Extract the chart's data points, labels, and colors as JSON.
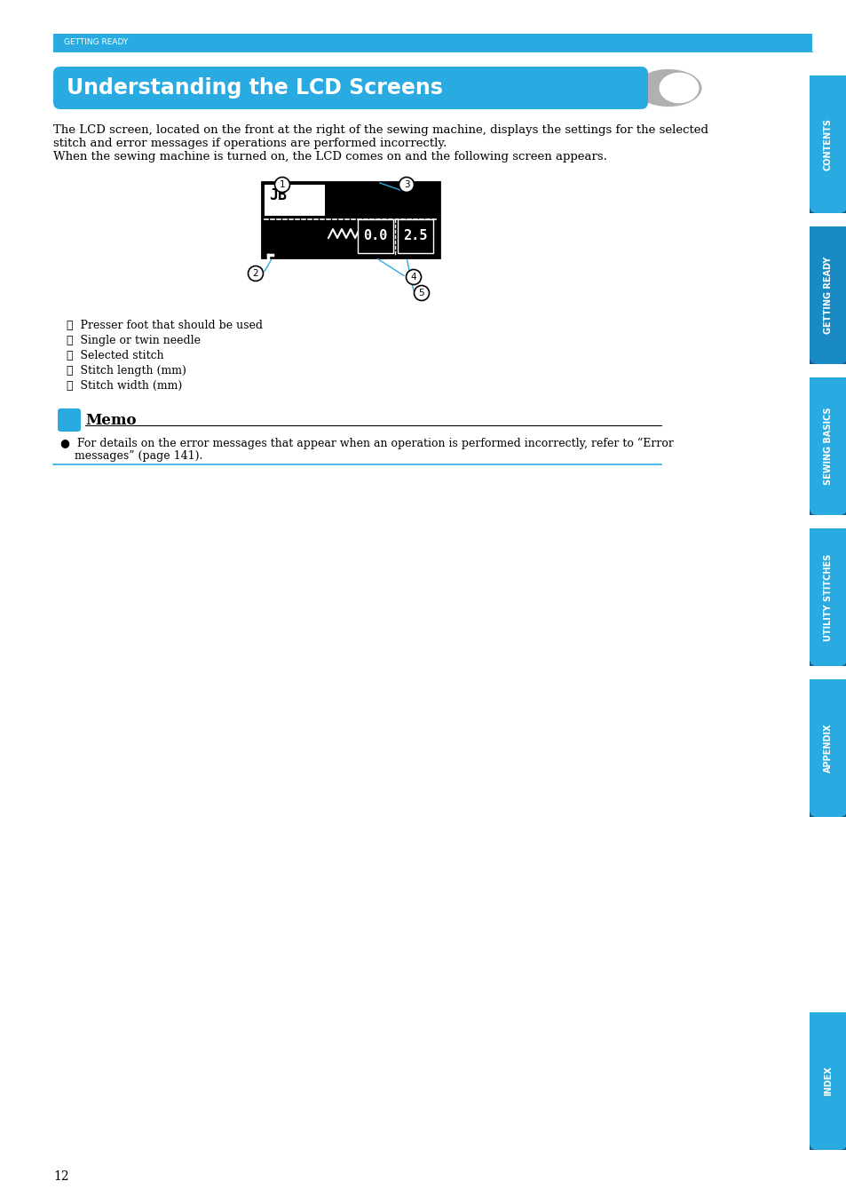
{
  "page_number": "12",
  "top_banner_text": "GETTING READY",
  "top_banner_color": "#29ABE2",
  "title": "Understanding the LCD Screens",
  "title_bg_color": "#29ABE2",
  "title_text_color": "#FFFFFF",
  "body_text_line1": "The LCD screen, located on the front at the right of the sewing machine, displays the settings for the selected",
  "body_text_line2": "stitch and error messages if operations are performed incorrectly.",
  "body_text_line3": "When the sewing machine is turned on, the LCD comes on and the following screen appears.",
  "callout_items": [
    "①  Presser foot that should be used",
    "②  Single or twin needle",
    "③  Selected stitch",
    "④  Stitch length (mm)",
    "⑤  Stitch width (mm)"
  ],
  "memo_text": "Memo",
  "memo_bullet": "●  For details on the error messages that appear when an operation is performed incorrectly, refer to “Error",
  "memo_bullet2": "    messages” (page 141).",
  "sidebar_labels": [
    "CONTENTS",
    "GETTING READY",
    "SEWING BASICS",
    "UTILITY STITCHES",
    "APPENDIX",
    "INDEX"
  ],
  "sidebar_color": "#29ABE2",
  "sidebar_active_color": "#1A8AC4",
  "sidebar_dark_bottom": "#1A5A80",
  "background_color": "#FFFFFF",
  "line_color": "#29ABE2",
  "callout_line_color": "#29ABE2",
  "memo_icon_color": "#29ABE2"
}
